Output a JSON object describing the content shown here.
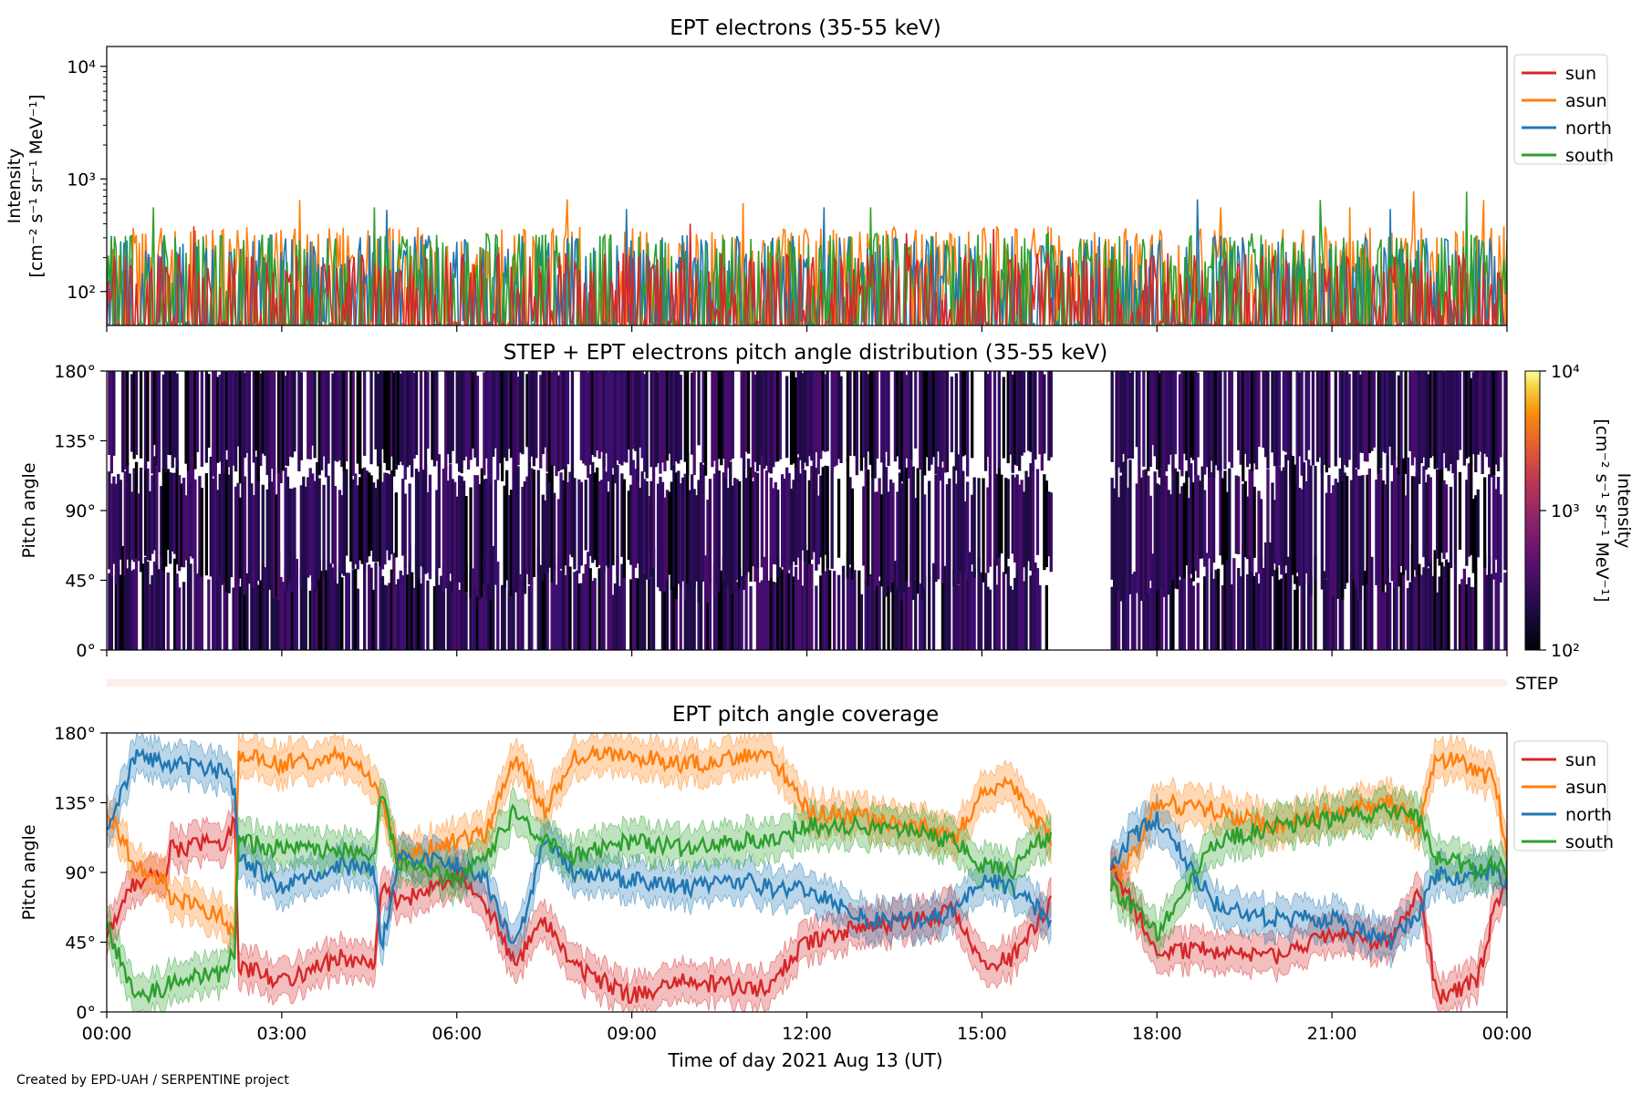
{
  "credit": "Created by EPD-UAH / SERPENTINE project",
  "chart_data": [
    {
      "type": "line",
      "title": "EPT electrons (35-55 keV)",
      "ylabel_line1": "Intensity",
      "ylabel_line2": "[cm⁻² s⁻¹ sr⁻¹ MeV⁻¹]",
      "yscale": "log",
      "ylim": [
        50,
        15000
      ],
      "yticks": [
        {
          "value": 100,
          "label": "10²"
        },
        {
          "value": 1000,
          "label": "10³"
        },
        {
          "value": 10000,
          "label": "10⁴"
        }
      ],
      "xlim": [
        0,
        24
      ],
      "legend": {
        "placement": "outside-right-top",
        "entries": [
          "sun",
          "asun",
          "north",
          "south"
        ]
      },
      "series": [
        {
          "name": "sun",
          "color": "#d62728",
          "level": [
            60,
            220
          ],
          "spikes": [
            [
              1.5,
              380
            ],
            [
              10.0,
              400
            ],
            [
              13.7,
              330
            ],
            [
              15.2,
              360
            ]
          ]
        },
        {
          "name": "asun",
          "color": "#ff7f0e",
          "level": [
            90,
            380
          ],
          "spikes": [
            [
              3.3,
              650
            ],
            [
              7.9,
              660
            ],
            [
              10.9,
              610
            ],
            [
              19.1,
              560
            ],
            [
              21.3,
              560
            ],
            [
              22.4,
              780
            ],
            [
              23.6,
              650
            ]
          ]
        },
        {
          "name": "north",
          "color": "#1f77b4",
          "level": [
            80,
            320
          ],
          "spikes": [
            [
              4.8,
              530
            ],
            [
              8.9,
              540
            ],
            [
              12.3,
              560
            ],
            [
              18.7,
              660
            ],
            [
              22.0,
              540
            ]
          ]
        },
        {
          "name": "south",
          "color": "#2ca02c",
          "level": [
            80,
            330
          ],
          "spikes": [
            [
              0.8,
              560
            ],
            [
              4.6,
              560
            ],
            [
              13.1,
              560
            ],
            [
              20.8,
              650
            ],
            [
              23.3,
              770
            ]
          ]
        }
      ]
    },
    {
      "type": "heatmap",
      "title": "STEP + EPT electrons pitch angle distribution (35-55 keV)",
      "ylabel": "Pitch angle",
      "ylim": [
        0,
        180
      ],
      "yticks": [
        "0°",
        "45°",
        "90°",
        "135°",
        "180°"
      ],
      "xlim": [
        0,
        24
      ],
      "data_gaps": [
        [
          16.2,
          17.2
        ]
      ],
      "colorbar": {
        "label_line1": "Intensity",
        "label_line2": "[cm⁻² s⁻¹ sr⁻¹ MeV⁻¹]",
        "scale": "log",
        "range": [
          100,
          10000
        ],
        "ticks": [
          "10²",
          "10³",
          "10⁴"
        ],
        "colormap": "inferno"
      },
      "step_label": "STEP"
    },
    {
      "type": "line",
      "title": "EPT pitch angle coverage",
      "ylabel": "Pitch angle",
      "ylim": [
        0,
        180
      ],
      "yticks": [
        "0°",
        "45°",
        "90°",
        "135°",
        "180°"
      ],
      "xlim": [
        0,
        24
      ],
      "xlabel": "Time of day 2021 Aug 13 (UT)",
      "xticks": [
        "00:00",
        "03:00",
        "06:00",
        "09:00",
        "12:00",
        "15:00",
        "18:00",
        "21:00",
        "00:00"
      ],
      "data_gaps": [
        [
          16.2,
          17.2
        ]
      ],
      "band_halfwidth_deg": 12,
      "legend": {
        "placement": "outside-right-top",
        "entries": [
          "sun",
          "asun",
          "north",
          "south"
        ]
      },
      "series": [
        {
          "name": "sun",
          "color": "#d62728",
          "x": [
            0,
            0.5,
            1.0,
            1.1,
            2.0,
            2.2,
            2.25,
            3.0,
            4.0,
            4.6,
            4.7,
            5.0,
            6.0,
            6.5,
            7.0,
            7.5,
            8.0,
            9.0,
            10.0,
            11.0,
            11.3,
            12.0,
            13.0,
            14.0,
            14.5,
            15.0,
            15.5,
            16.0,
            16.2,
            17.2,
            17.5,
            18.0,
            19.0,
            20.0,
            21.0,
            22.0,
            22.5,
            22.8,
            23.2,
            23.5,
            23.8,
            24.0
          ],
          "y": [
            50,
            85,
            90,
            105,
            110,
            125,
            30,
            20,
            35,
            30,
            80,
            70,
            90,
            70,
            30,
            60,
            30,
            10,
            20,
            15,
            15,
            45,
            55,
            60,
            65,
            30,
            35,
            60,
            70,
            95,
            75,
            40,
            40,
            35,
            50,
            45,
            80,
            10,
            15,
            20,
            70,
            85
          ]
        },
        {
          "name": "asun",
          "color": "#ff7f0e",
          "x": [
            0,
            0.5,
            1.0,
            1.1,
            2.0,
            2.2,
            2.25,
            3.0,
            4.0,
            4.6,
            4.7,
            5.0,
            6.0,
            6.5,
            7.0,
            7.5,
            8.0,
            9.0,
            10.0,
            11.0,
            11.3,
            12.0,
            13.0,
            14.0,
            14.5,
            15.0,
            15.5,
            16.0,
            16.2,
            17.2,
            17.5,
            18.0,
            19.0,
            20.0,
            21.0,
            22.0,
            22.5,
            22.8,
            23.2,
            23.5,
            23.8,
            24.0
          ],
          "y": [
            130,
            95,
            85,
            75,
            60,
            45,
            165,
            160,
            165,
            150,
            135,
            100,
            110,
            115,
            165,
            130,
            165,
            165,
            160,
            165,
            170,
            130,
            125,
            120,
            110,
            140,
            150,
            120,
            110,
            85,
            95,
            135,
            130,
            120,
            130,
            135,
            120,
            165,
            160,
            155,
            150,
            100
          ]
        },
        {
          "name": "north",
          "color": "#1f77b4",
          "x": [
            0,
            0.5,
            1.0,
            1.1,
            2.0,
            2.2,
            2.25,
            3.0,
            4.0,
            4.6,
            4.7,
            5.0,
            6.0,
            6.5,
            7.0,
            7.5,
            8.0,
            9.0,
            10.0,
            11.0,
            11.3,
            12.0,
            13.0,
            14.0,
            14.5,
            15.0,
            15.5,
            16.0,
            16.2,
            17.2,
            17.5,
            18.0,
            19.0,
            20.0,
            21.0,
            22.0,
            22.5,
            22.8,
            23.2,
            23.5,
            23.8,
            24.0
          ],
          "y": [
            120,
            165,
            160,
            160,
            155,
            140,
            100,
            80,
            95,
            90,
            40,
            100,
            95,
            85,
            40,
            110,
            90,
            85,
            80,
            85,
            80,
            80,
            60,
            60,
            65,
            85,
            80,
            65,
            60,
            90,
            110,
            125,
            70,
            60,
            60,
            45,
            65,
            90,
            85,
            90,
            90,
            85
          ]
        },
        {
          "name": "south",
          "color": "#2ca02c",
          "x": [
            0,
            0.5,
            1.0,
            1.1,
            2.0,
            2.2,
            2.25,
            3.0,
            4.0,
            4.6,
            4.7,
            5.0,
            6.0,
            6.5,
            7.0,
            7.5,
            8.0,
            9.0,
            10.0,
            11.0,
            11.3,
            12.0,
            13.0,
            14.0,
            14.5,
            15.0,
            15.5,
            16.0,
            16.2,
            17.2,
            17.5,
            18.0,
            19.0,
            20.0,
            21.0,
            22.0,
            22.5,
            22.8,
            23.2,
            23.5,
            23.8,
            24.0
          ],
          "y": [
            55,
            10,
            15,
            20,
            25,
            40,
            110,
            105,
            105,
            100,
            145,
            95,
            85,
            100,
            130,
            110,
            100,
            110,
            105,
            110,
            110,
            120,
            120,
            115,
            110,
            95,
            90,
            110,
            115,
            80,
            70,
            50,
            110,
            120,
            125,
            130,
            125,
            100,
            95,
            90,
            95,
            90
          ]
        }
      ]
    }
  ]
}
